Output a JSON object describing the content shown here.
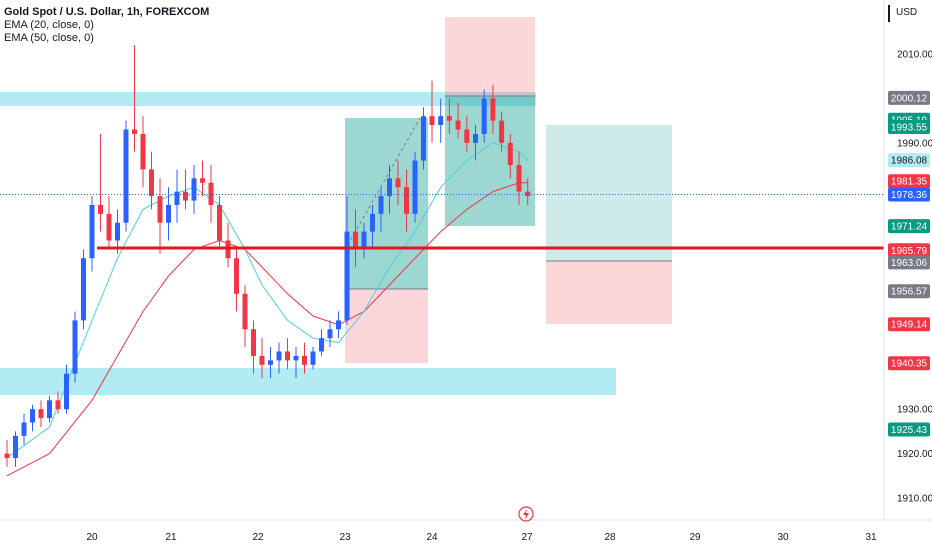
{
  "legend": {
    "title": "Gold Spot / U.S. Dollar, 1h, FOREXCOM",
    "ema20": "EMA (20, close, 0)",
    "ema50": "EMA (50, close, 0)"
  },
  "axis": {
    "currency": "USD",
    "ticks": [
      "2010.00",
      "1990.00",
      "1930.00",
      "1920.00",
      "1910.00"
    ],
    "x_labels": [
      "20",
      "21",
      "22",
      "23",
      "24",
      "27",
      "28",
      "29",
      "30",
      "31"
    ],
    "event_icon": "lightning-icon"
  },
  "price_tags": [
    {
      "label": "2000.12",
      "value": 2000.12,
      "bg": "#787b86",
      "fg": "#ffffff"
    },
    {
      "label": "1995.19",
      "value": 1995.19,
      "bg": "#089981",
      "fg": "#ffffff"
    },
    {
      "label": "1993.55",
      "value": 1993.55,
      "bg": "#089981",
      "fg": "#ffffff"
    },
    {
      "label": "1986.08",
      "value": 1986.08,
      "bg": "#b2ebf2",
      "fg": "#131722"
    },
    {
      "label": "1981.35",
      "value": 1981.35,
      "bg": "#f23645",
      "fg": "#ffffff"
    },
    {
      "label": "1978.36",
      "value": 1978.36,
      "bg": "#2962ff",
      "fg": "#ffffff"
    },
    {
      "label": "1971.24",
      "value": 1971.24,
      "bg": "#089981",
      "fg": "#ffffff"
    },
    {
      "label": "1965.79",
      "value": 1965.79,
      "bg": "#f23645",
      "fg": "#ffffff"
    },
    {
      "label": "1963.06",
      "value": 1963.06,
      "bg": "#787b86",
      "fg": "#ffffff"
    },
    {
      "label": "1956.57",
      "value": 1956.57,
      "bg": "#787b86",
      "fg": "#ffffff"
    },
    {
      "label": "1949.14",
      "value": 1949.14,
      "bg": "#f23645",
      "fg": "#ffffff"
    },
    {
      "label": "1940.35",
      "value": 1940.35,
      "bg": "#f23645",
      "fg": "#ffffff"
    },
    {
      "label": "1925.43",
      "value": 1925.43,
      "bg": "#089981",
      "fg": "#ffffff"
    }
  ],
  "chart_data": {
    "type": "candlestick",
    "symbol": "Gold Spot / U.S. Dollar",
    "timeframe": "1h",
    "exchange": "FOREXCOM",
    "y_range": [
      1905,
      2020
    ],
    "x_range": [
      19.0,
      31.2
    ],
    "colors": {
      "up": "#2962ff",
      "down": "#f23645",
      "ema20": "#4dd0e1",
      "ema50": "#f23645"
    },
    "current_price": 1978.36,
    "candles": [
      [
        19.0,
        1920,
        1923,
        1917,
        1919
      ],
      [
        19.1,
        1919,
        1925,
        1917,
        1924
      ],
      [
        19.2,
        1924,
        1929,
        1922,
        1927
      ],
      [
        19.3,
        1927,
        1931,
        1925,
        1930
      ],
      [
        19.4,
        1930,
        1932,
        1926,
        1928
      ],
      [
        19.5,
        1928,
        1933,
        1927,
        1932
      ],
      [
        19.6,
        1932,
        1934,
        1929,
        1930
      ],
      [
        19.7,
        1930,
        1940,
        1929,
        1938
      ],
      [
        19.8,
        1938,
        1952,
        1936,
        1950
      ],
      [
        19.9,
        1950,
        1966,
        1948,
        1964
      ],
      [
        20.0,
        1964,
        1978,
        1961,
        1976
      ],
      [
        20.1,
        1976,
        1992,
        1970,
        1974
      ],
      [
        20.2,
        1974,
        1978,
        1966,
        1968
      ],
      [
        20.3,
        1968,
        1975,
        1965,
        1972
      ],
      [
        20.4,
        1972,
        1995,
        1970,
        1993
      ],
      [
        20.5,
        1993,
        2012,
        1988,
        1992
      ],
      [
        20.6,
        1992,
        1996,
        1980,
        1984
      ],
      [
        20.7,
        1984,
        1988,
        1975,
        1978
      ],
      [
        20.8,
        1978,
        1982,
        1965,
        1972
      ],
      [
        20.9,
        1972,
        1980,
        1968,
        1976
      ],
      [
        21.0,
        1976,
        1984,
        1972,
        1979
      ],
      [
        21.1,
        1979,
        1984,
        1975,
        1977
      ],
      [
        21.2,
        1977,
        1985,
        1974,
        1982
      ],
      [
        21.3,
        1982,
        1986,
        1978,
        1981
      ],
      [
        21.4,
        1981,
        1985,
        1972,
        1976
      ],
      [
        21.5,
        1976,
        1978,
        1966,
        1968
      ],
      [
        21.6,
        1968,
        1972,
        1962,
        1964
      ],
      [
        21.7,
        1964,
        1966,
        1952,
        1956
      ],
      [
        21.8,
        1956,
        1958,
        1944,
        1948
      ],
      [
        21.9,
        1948,
        1950,
        1938,
        1942
      ],
      [
        22.0,
        1942,
        1946,
        1937,
        1940
      ],
      [
        22.1,
        1940,
        1944,
        1937,
        1941
      ],
      [
        22.2,
        1941,
        1945,
        1938,
        1943
      ],
      [
        22.3,
        1943,
        1946,
        1939,
        1941
      ],
      [
        22.4,
        1941,
        1944,
        1937,
        1942
      ],
      [
        22.5,
        1942,
        1945,
        1938,
        1940
      ],
      [
        22.6,
        1940,
        1944,
        1939,
        1943
      ],
      [
        22.7,
        1943,
        1948,
        1942,
        1946
      ],
      [
        22.8,
        1946,
        1950,
        1944,
        1948
      ],
      [
        22.9,
        1948,
        1952,
        1946,
        1950
      ],
      [
        23.0,
        1950,
        1978,
        1949,
        1970
      ],
      [
        23.1,
        1970,
        1975,
        1962,
        1966
      ],
      [
        23.2,
        1966,
        1972,
        1964,
        1970
      ],
      [
        23.3,
        1970,
        1976,
        1966,
        1974
      ],
      [
        23.4,
        1974,
        1980,
        1970,
        1978
      ],
      [
        23.5,
        1978,
        1985,
        1974,
        1982
      ],
      [
        23.6,
        1982,
        1986,
        1976,
        1980
      ],
      [
        23.7,
        1980,
        1984,
        1970,
        1974
      ],
      [
        23.8,
        1974,
        1988,
        1972,
        1986
      ],
      [
        23.9,
        1986,
        1998,
        1984,
        1996
      ],
      [
        24.0,
        1996,
        2004,
        1990,
        1994
      ],
      [
        24.1,
        1994,
        2000,
        1990,
        1996
      ],
      [
        24.2,
        1996,
        2000,
        1992,
        1995
      ],
      [
        24.3,
        1995,
        1999,
        1991,
        1993
      ],
      [
        24.4,
        1993,
        1996,
        1988,
        1990
      ],
      [
        24.5,
        1990,
        1994,
        1986,
        1992
      ],
      [
        24.6,
        1992,
        2002,
        1990,
        2000
      ],
      [
        24.7,
        2000,
        2003,
        1992,
        1995
      ],
      [
        24.8,
        1995,
        1997,
        1988,
        1990
      ],
      [
        24.9,
        1990,
        1992,
        1982,
        1985
      ],
      [
        25.0,
        1985,
        1988,
        1976,
        1979
      ],
      [
        25.1,
        1979,
        1982,
        1976,
        1978
      ]
    ],
    "ema20": [
      [
        19.0,
        1919
      ],
      [
        19.5,
        1926
      ],
      [
        20.0,
        1950
      ],
      [
        20.3,
        1964
      ],
      [
        20.6,
        1975
      ],
      [
        20.9,
        1978
      ],
      [
        21.2,
        1980
      ],
      [
        21.5,
        1976
      ],
      [
        21.8,
        1966
      ],
      [
        22.0,
        1958
      ],
      [
        22.3,
        1950
      ],
      [
        22.6,
        1946
      ],
      [
        22.9,
        1945
      ],
      [
        23.2,
        1952
      ],
      [
        23.5,
        1962
      ],
      [
        23.8,
        1970
      ],
      [
        24.1,
        1980
      ],
      [
        24.4,
        1986
      ],
      [
        24.7,
        1990
      ],
      [
        25.0,
        1988
      ],
      [
        25.1,
        1986
      ]
    ],
    "ema50": [
      [
        19.0,
        1915
      ],
      [
        19.5,
        1920
      ],
      [
        20.0,
        1932
      ],
      [
        20.3,
        1942
      ],
      [
        20.6,
        1952
      ],
      [
        20.9,
        1960
      ],
      [
        21.2,
        1966
      ],
      [
        21.5,
        1968
      ],
      [
        21.8,
        1966
      ],
      [
        22.0,
        1962
      ],
      [
        22.3,
        1956
      ],
      [
        22.6,
        1951
      ],
      [
        22.9,
        1949
      ],
      [
        23.2,
        1952
      ],
      [
        23.5,
        1958
      ],
      [
        23.8,
        1964
      ],
      [
        24.1,
        1970
      ],
      [
        24.4,
        1975
      ],
      [
        24.7,
        1979
      ],
      [
        25.0,
        1981
      ],
      [
        25.1,
        1981
      ]
    ]
  }
}
